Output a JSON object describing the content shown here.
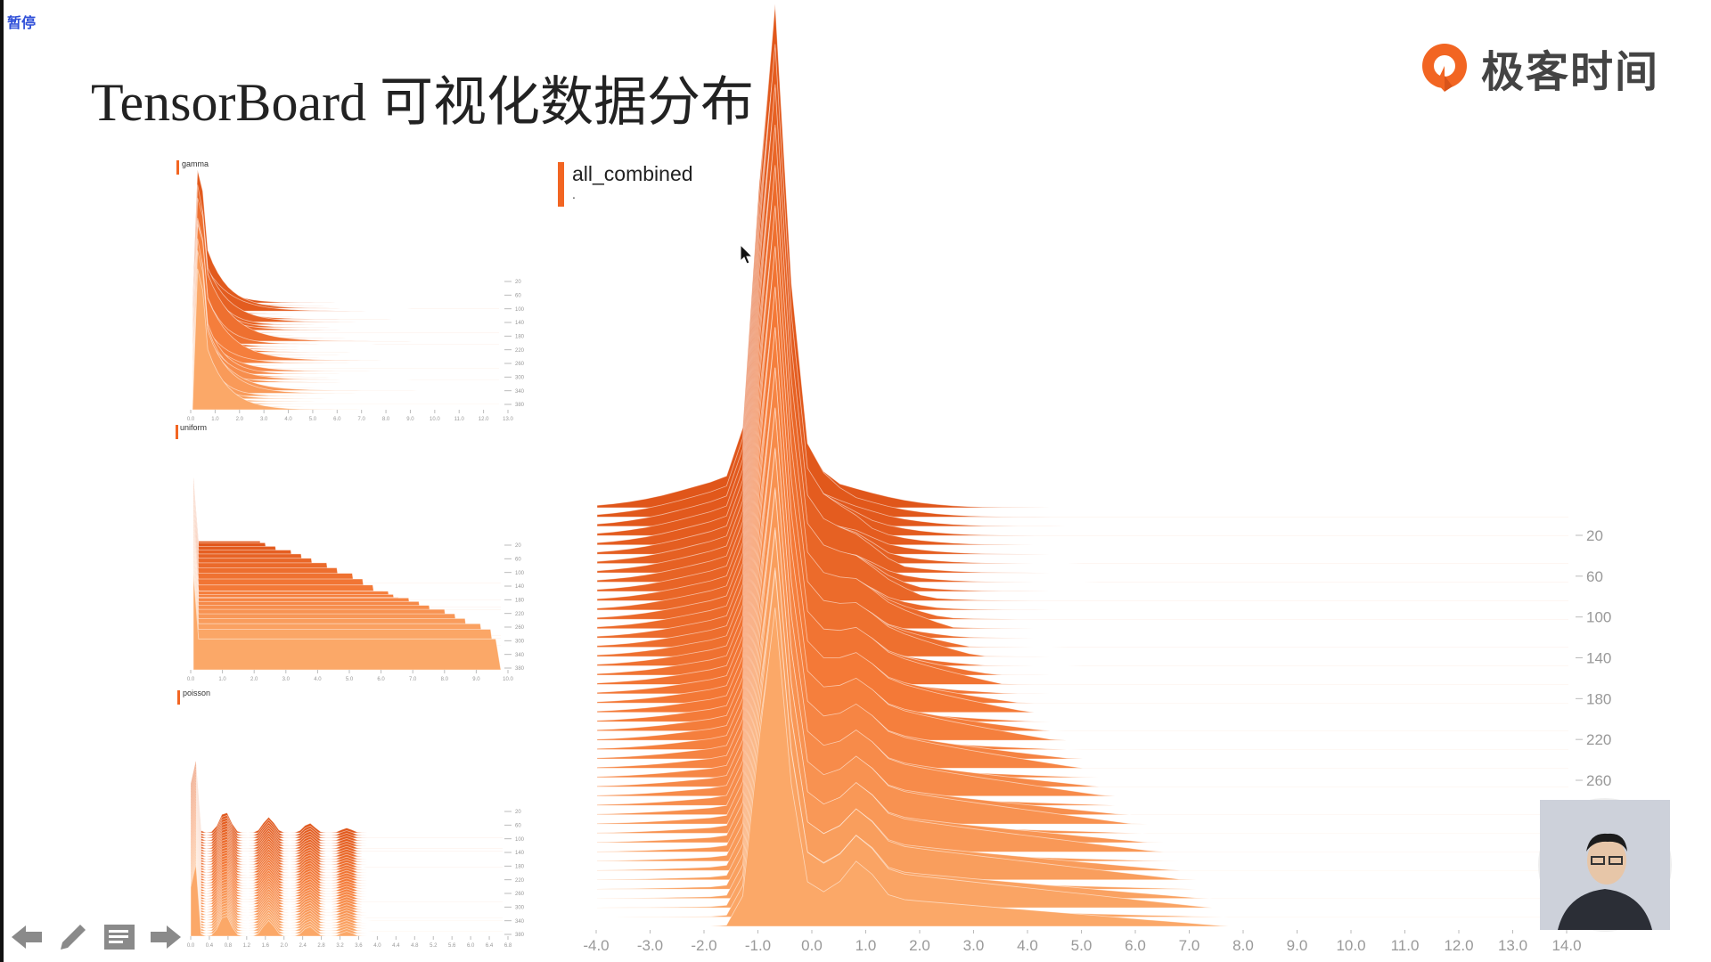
{
  "badge": "暂停",
  "title": "TensorBoard 可视化数据分布",
  "logo": {
    "text": "极客时间",
    "icon": "geektime-logo-icon",
    "color": "#f26522"
  },
  "panels": [
    {
      "label": "gamma",
      "x_ticks": [
        "0.0",
        "1.0",
        "2.0",
        "3.0",
        "4.0",
        "5.0",
        "6.0",
        "7.0",
        "8.0",
        "9.0",
        "10.0",
        "11.0",
        "12.0",
        "13.0"
      ],
      "y_ticks": [
        "20",
        "60",
        "100",
        "140",
        "180",
        "220",
        "260",
        "300",
        "340",
        "380"
      ]
    },
    {
      "label": "uniform",
      "x_ticks": [
        "0.0",
        "1.0",
        "2.0",
        "3.0",
        "4.0",
        "5.0",
        "6.0",
        "7.0",
        "8.0",
        "9.0",
        "10.0"
      ],
      "y_ticks": [
        "20",
        "60",
        "100",
        "140",
        "180",
        "220",
        "260",
        "300",
        "340",
        "380"
      ]
    },
    {
      "label": "poisson",
      "x_ticks": [
        "0.0",
        "0.4",
        "0.8",
        "1.2",
        "1.6",
        "2.0",
        "2.4",
        "2.8",
        "3.2",
        "3.6",
        "4.0",
        "4.4",
        "4.8",
        "5.2",
        "5.6",
        "6.0",
        "6.4",
        "6.8"
      ],
      "y_ticks": [
        "20",
        "60",
        "100",
        "140",
        "180",
        "220",
        "260",
        "300",
        "340",
        "380"
      ]
    }
  ],
  "main": {
    "label": "all_combined",
    "sub": ".",
    "x_ticks": [
      "-4.0",
      "-3.0",
      "-2.0",
      "-1.0",
      "0.0",
      "1.0",
      "2.0",
      "3.0",
      "4.0",
      "5.0",
      "6.0",
      "7.0",
      "8.0",
      "9.0",
      "10.0",
      "11.0",
      "12.0",
      "13.0",
      "14.0"
    ],
    "y_ticks": [
      "20",
      "60",
      "100",
      "140",
      "180",
      "220",
      "260"
    ]
  },
  "colors": {
    "dark": "#e0561a",
    "mid": "#f47a38",
    "light": "#fba868",
    "accent": "#f26522"
  },
  "nav": {
    "prev": "arrow-left-icon",
    "pen": "pen-icon",
    "menu": "notes-icon",
    "next": "arrow-right-icon"
  }
}
